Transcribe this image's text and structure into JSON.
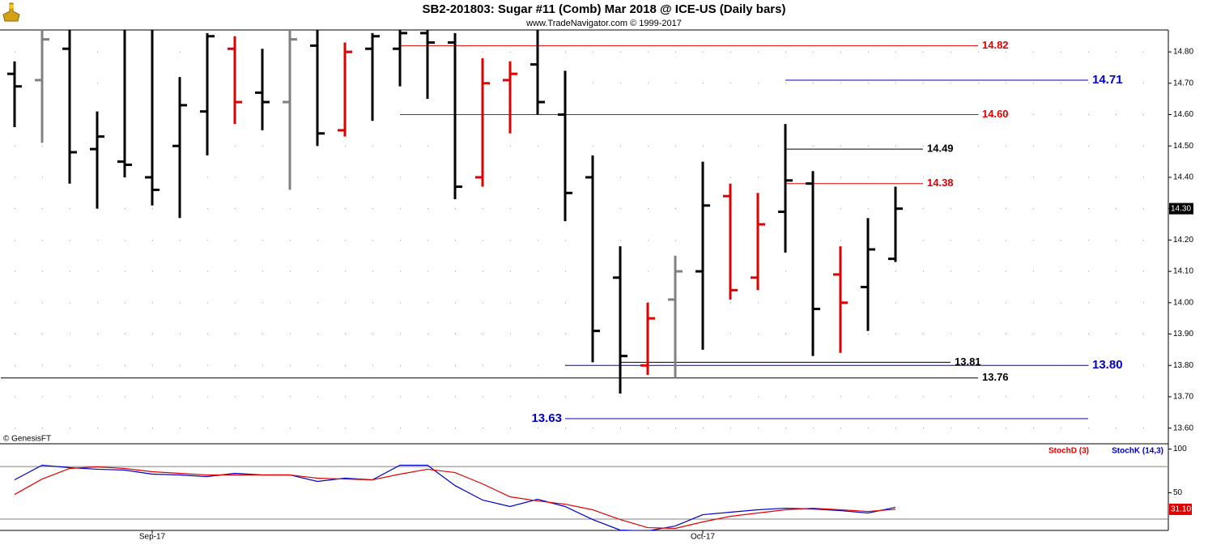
{
  "chart_data": [
    {
      "type": "ohlc",
      "title": "SB2-201803:  Sugar #11 (Comb) Mar 2018 @ ICE-US  (Daily bars)",
      "subtitle": "www.TradeNavigator.com © 1999-2017",
      "note": "© GenesisFT",
      "categories": [
        null,
        null,
        null,
        null,
        null,
        null,
        null,
        null,
        null,
        null,
        null,
        null,
        null,
        null,
        null,
        null,
        null,
        null,
        null,
        null,
        null,
        null,
        null,
        null,
        null,
        null,
        null,
        null,
        null,
        null,
        null,
        null,
        null
      ],
      "xticks": [
        {
          "value": 5,
          "label": "Sep-17"
        },
        {
          "value": 25,
          "label": "Oct-17"
        }
      ],
      "open": [
        14.73,
        14.71,
        14.81,
        14.49,
        14.45,
        14.4,
        14.5,
        14.61,
        14.81,
        14.67,
        14.64,
        14.82,
        14.55,
        14.81,
        14.81,
        14.86,
        14.83,
        14.4,
        14.71,
        14.76,
        14.6,
        14.4,
        14.08,
        13.8,
        14.01,
        14.1,
        14.34,
        14.08,
        14.29,
        14.38,
        14.09,
        14.05,
        14.14
      ],
      "high": [
        14.77,
        14.9,
        14.9,
        14.61,
        14.95,
        14.95,
        14.72,
        14.86,
        14.85,
        14.81,
        14.87,
        14.87,
        14.83,
        14.86,
        14.87,
        14.88,
        14.86,
        14.78,
        14.77,
        14.9,
        14.74,
        14.47,
        14.18,
        14.0,
        14.15,
        14.45,
        14.38,
        14.35,
        14.57,
        14.42,
        14.18,
        14.27,
        14.37
      ],
      "low": [
        14.56,
        14.51,
        14.38,
        14.3,
        14.4,
        14.31,
        14.27,
        14.47,
        14.57,
        14.55,
        14.36,
        14.5,
        14.53,
        14.58,
        14.69,
        14.65,
        14.33,
        14.37,
        14.54,
        14.6,
        14.26,
        13.81,
        13.71,
        13.77,
        13.76,
        13.85,
        14.01,
        14.04,
        14.16,
        13.83,
        13.84,
        13.91,
        14.13
      ],
      "close": [
        14.69,
        14.84,
        14.48,
        14.53,
        14.44,
        14.36,
        14.63,
        14.85,
        14.64,
        14.64,
        14.84,
        14.54,
        14.8,
        14.85,
        14.86,
        14.83,
        14.37,
        14.7,
        14.73,
        14.64,
        14.35,
        13.91,
        13.83,
        13.95,
        14.1,
        14.31,
        14.04,
        14.25,
        14.39,
        13.98,
        14.0,
        14.17,
        14.3
      ],
      "colors": [
        "#000000",
        "#808080",
        "#000000",
        "#000000",
        "#000000",
        "#000000",
        "#000000",
        "#000000",
        "#e00000",
        "#000000",
        "#808080",
        "#000000",
        "#e00000",
        "#000000",
        "#000000",
        "#000000",
        "#000000",
        "#e00000",
        "#e00000",
        "#000000",
        "#000000",
        "#000000",
        "#000000",
        "#e00000",
        "#808080",
        "#000000",
        "#e00000",
        "#e00000",
        "#000000",
        "#000000",
        "#e00000",
        "#000000",
        "#000000"
      ],
      "ylim": [
        13.55,
        14.87
      ],
      "yticks": [
        {
          "value": 14.8,
          "label": "14.80"
        },
        {
          "value": 14.7,
          "label": "14.70"
        },
        {
          "value": 14.6,
          "label": "14.60"
        },
        {
          "value": 14.5,
          "label": "14.50"
        },
        {
          "value": 14.4,
          "label": "14.40"
        },
        {
          "value": 14.3,
          "label": "14.30"
        },
        {
          "value": 14.2,
          "label": "14.20"
        },
        {
          "value": 14.1,
          "label": "14.10"
        },
        {
          "value": 14.0,
          "label": "14.00"
        },
        {
          "value": 13.9,
          "label": "13.90"
        },
        {
          "value": 13.8,
          "label": "13.80"
        },
        {
          "value": 13.7,
          "label": "13.70"
        },
        {
          "value": 13.6,
          "label": "13.60"
        }
      ],
      "grid": true,
      "levels": [
        {
          "value": 14.82,
          "label": "14.82",
          "color": "#e00000",
          "from": 14,
          "to": 35,
          "side": "right"
        },
        {
          "value": 14.71,
          "label": "14.71",
          "color": "#0000cc",
          "from": 28,
          "to": 39,
          "side": "right"
        },
        {
          "value": 14.6,
          "label": "14.60",
          "color": "#e00000",
          "from": 14,
          "to": 35,
          "side": "right"
        },
        {
          "value": 14.49,
          "label": "14.49",
          "color": "#000000",
          "from": 28,
          "to": 33,
          "side": "right"
        },
        {
          "value": 14.38,
          "label": "14.38",
          "color": "#e00000",
          "from": 28,
          "to": 33,
          "side": "right"
        },
        {
          "value": 13.81,
          "label": "13.81",
          "color": "#000000",
          "from": 22,
          "to": 34,
          "side": "right"
        },
        {
          "value": 13.8,
          "label": "13.80",
          "color": "#0000cc",
          "from": 20,
          "to": 39,
          "side": "right"
        },
        {
          "value": 13.76,
          "label": "13.76",
          "color": "#000000",
          "from": -0.5,
          "to": 35,
          "side": "right"
        },
        {
          "value": 13.63,
          "label": "13.63",
          "color": "#0000cc",
          "from": 20,
          "to": 39,
          "side": "left"
        }
      ],
      "last_price": {
        "value": 14.3,
        "label": "14.30"
      }
    },
    {
      "type": "line",
      "series": [
        {
          "name": "StochD (3)",
          "color": "#e00000",
          "values": [
            48.1,
            65.7,
            77.8,
            79.6,
            77.8,
            74.1,
            72.2,
            70.4,
            70.4,
            70.4,
            70.4,
            66.7,
            65.7,
            64.8,
            71.3,
            76.9,
            73.1,
            60.2,
            45.4,
            40.7,
            37.0,
            30.6,
            19.4,
            10.2,
            9.3,
            16.7,
            23.1,
            26.9,
            30.6,
            32.4,
            30.6,
            28.7,
            31.1
          ]
        },
        {
          "name": "StochK (14,3)",
          "color": "#0000cc",
          "values": [
            64.8,
            81.5,
            78.7,
            76.9,
            75.9,
            71.3,
            70.4,
            68.5,
            72.2,
            70.4,
            70.4,
            63.0,
            66.7,
            64.8,
            81.5,
            81.5,
            58.3,
            41.7,
            34.3,
            42.6,
            34.3,
            19.4,
            7.4,
            6.5,
            12.0,
            25.0,
            27.8,
            30.6,
            32.4,
            31.5,
            29.6,
            26.9,
            33.3
          ]
        }
      ],
      "ylim": [
        7,
        106
      ],
      "yticks": [
        100,
        50
      ],
      "bands": [
        80,
        20
      ],
      "last_label": {
        "value": 31.1,
        "label": "31.10"
      }
    }
  ]
}
